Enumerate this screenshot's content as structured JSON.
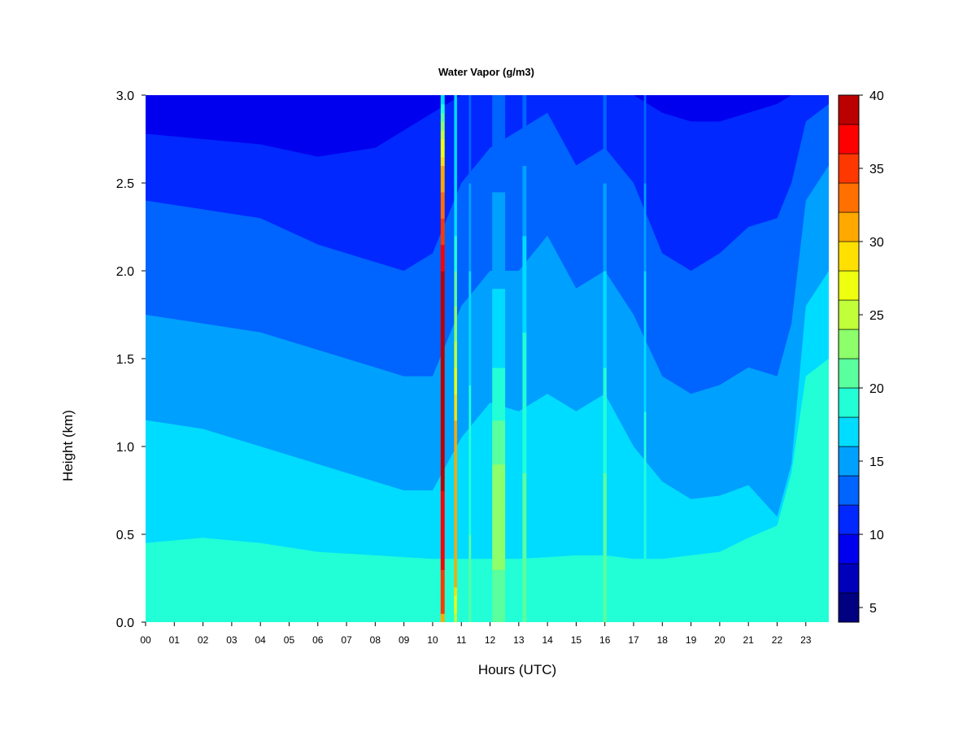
{
  "chart_data": {
    "type": "heatmap",
    "title": "Water Vapor (g/m3)",
    "xlabel": "Hours (UTC)",
    "ylabel": "Height (km)",
    "xlim": [
      0,
      23.8
    ],
    "ylim": [
      0,
      3.0
    ],
    "x_tick_labels": [
      "00",
      "01",
      "02",
      "03",
      "04",
      "05",
      "06",
      "07",
      "08",
      "09",
      "10",
      "11",
      "12",
      "13",
      "14",
      "15",
      "16",
      "17",
      "18",
      "19",
      "20",
      "21",
      "22",
      "23"
    ],
    "y_ticks": [
      0.0,
      0.5,
      1.0,
      1.5,
      2.0,
      2.5,
      3.0
    ],
    "y_tick_labels": [
      "0.0",
      "0.5",
      "1.0",
      "1.5",
      "2.0",
      "2.5",
      "3.0"
    ],
    "colorbar": {
      "min": 4,
      "max": 40,
      "levels": [
        4,
        6,
        8,
        10,
        12,
        14,
        16,
        18,
        20,
        22,
        24,
        26,
        28,
        30,
        32,
        34,
        36,
        38,
        40
      ],
      "colors": [
        "#000080",
        "#0000bb",
        "#0000ee",
        "#0028ff",
        "#0064ff",
        "#00a0ff",
        "#00dcff",
        "#22ffd6",
        "#5aff9e",
        "#8cff6a",
        "#c0ff3a",
        "#eeff10",
        "#ffe000",
        "#ffa800",
        "#ff7000",
        "#ff3800",
        "#ff0000",
        "#bb0000",
        "#800000"
      ],
      "tick_values": [
        5,
        10,
        15,
        20,
        25,
        30,
        35,
        40
      ],
      "tick_labels": [
        "5",
        "10",
        "15",
        "20",
        "25",
        "30",
        "35",
        "40"
      ]
    },
    "boundaries_km": {
      "hours": [
        0,
        2,
        4,
        6,
        8,
        9,
        10,
        11,
        12,
        13,
        14,
        15,
        16,
        17,
        18,
        19,
        20,
        21,
        22,
        22.5,
        23,
        23.8
      ],
      "lvl20": [
        0.0,
        0.0,
        0.0,
        0.0,
        0.0,
        0.0,
        0.0,
        0.0,
        0.0,
        0.0,
        0.0,
        0.0,
        0.0,
        0.0,
        0.0,
        0.0,
        0.0,
        0.0,
        0.0,
        0.0,
        0.0,
        0.0
      ],
      "lvl18": [
        0.45,
        0.48,
        0.45,
        0.4,
        0.38,
        0.37,
        0.36,
        0.36,
        0.36,
        0.36,
        0.37,
        0.38,
        0.38,
        0.36,
        0.36,
        0.38,
        0.4,
        0.48,
        0.55,
        0.85,
        1.4,
        1.5
      ],
      "lvl16": [
        1.15,
        1.1,
        1.0,
        0.9,
        0.8,
        0.75,
        0.75,
        1.05,
        1.25,
        1.2,
        1.3,
        1.2,
        1.3,
        1.0,
        0.8,
        0.7,
        0.72,
        0.78,
        0.6,
        0.9,
        1.8,
        2.0
      ],
      "lvl14": [
        1.75,
        1.7,
        1.65,
        1.55,
        1.45,
        1.4,
        1.4,
        1.8,
        2.0,
        2.0,
        2.2,
        1.9,
        2.0,
        1.75,
        1.4,
        1.3,
        1.35,
        1.45,
        1.4,
        1.7,
        2.4,
        2.6
      ],
      "lvl12": [
        2.4,
        2.35,
        2.3,
        2.15,
        2.05,
        2.0,
        2.1,
        2.5,
        2.7,
        2.8,
        2.9,
        2.6,
        2.7,
        2.5,
        2.1,
        2.0,
        2.1,
        2.25,
        2.3,
        2.5,
        2.85,
        2.95
      ],
      "lvl10": [
        2.78,
        2.75,
        2.72,
        2.65,
        2.7,
        2.8,
        2.9,
        3.0,
        3.0,
        3.0,
        3.0,
        3.0,
        3.0,
        3.0,
        2.9,
        2.85,
        2.85,
        2.9,
        2.95,
        3.0,
        3.0,
        3.0
      ],
      "lvl8": [
        3.0,
        3.0,
        3.0,
        3.0,
        3.0,
        3.0,
        3.0,
        3.0,
        3.0,
        3.0,
        3.0,
        3.0,
        3.0,
        3.0,
        3.0,
        3.0,
        3.0,
        3.0,
        3.0,
        3.0,
        3.0,
        3.0
      ]
    },
    "plumes": [
      {
        "hour": 10.35,
        "width_h": 0.14,
        "profile": [
          [
            0.0,
            28
          ],
          [
            0.05,
            34
          ],
          [
            0.3,
            36
          ],
          [
            1.0,
            39
          ],
          [
            2.0,
            38
          ],
          [
            2.6,
            30
          ],
          [
            2.85,
            22
          ],
          [
            3.0,
            17
          ]
        ]
      },
      {
        "hour": 10.8,
        "width_h": 0.1,
        "profile": [
          [
            0.0,
            24
          ],
          [
            0.2,
            30
          ],
          [
            1.0,
            32
          ],
          [
            1.6,
            24
          ],
          [
            2.2,
            18
          ],
          [
            3.0,
            16
          ]
        ]
      },
      {
        "hour": 11.3,
        "width_h": 0.08,
        "profile": [
          [
            0.0,
            20
          ],
          [
            0.5,
            20
          ],
          [
            1.0,
            19
          ],
          [
            2.0,
            16
          ],
          [
            3.0,
            12
          ]
        ]
      },
      {
        "hour": 12.3,
        "width_h": 0.45,
        "profile": [
          [
            0.0,
            20
          ],
          [
            0.3,
            22
          ],
          [
            0.8,
            23
          ],
          [
            1.0,
            21
          ],
          [
            1.6,
            17
          ],
          [
            3.0,
            12
          ]
        ]
      },
      {
        "hour": 13.2,
        "width_h": 0.14,
        "profile": [
          [
            0.0,
            20
          ],
          [
            0.4,
            21
          ],
          [
            1.3,
            19
          ],
          [
            2.0,
            17
          ],
          [
            3.0,
            12
          ]
        ]
      },
      {
        "hour": 16.0,
        "width_h": 0.12,
        "profile": [
          [
            0.0,
            20
          ],
          [
            0.1,
            22
          ],
          [
            0.5,
            21
          ],
          [
            1.2,
            19
          ],
          [
            2.0,
            16
          ],
          [
            3.0,
            12
          ]
        ]
      },
      {
        "hour": 17.4,
        "width_h": 0.08,
        "profile": [
          [
            0.0,
            19
          ],
          [
            0.4,
            20
          ],
          [
            1.2,
            18
          ],
          [
            2.0,
            16
          ],
          [
            3.0,
            12
          ]
        ]
      }
    ]
  }
}
